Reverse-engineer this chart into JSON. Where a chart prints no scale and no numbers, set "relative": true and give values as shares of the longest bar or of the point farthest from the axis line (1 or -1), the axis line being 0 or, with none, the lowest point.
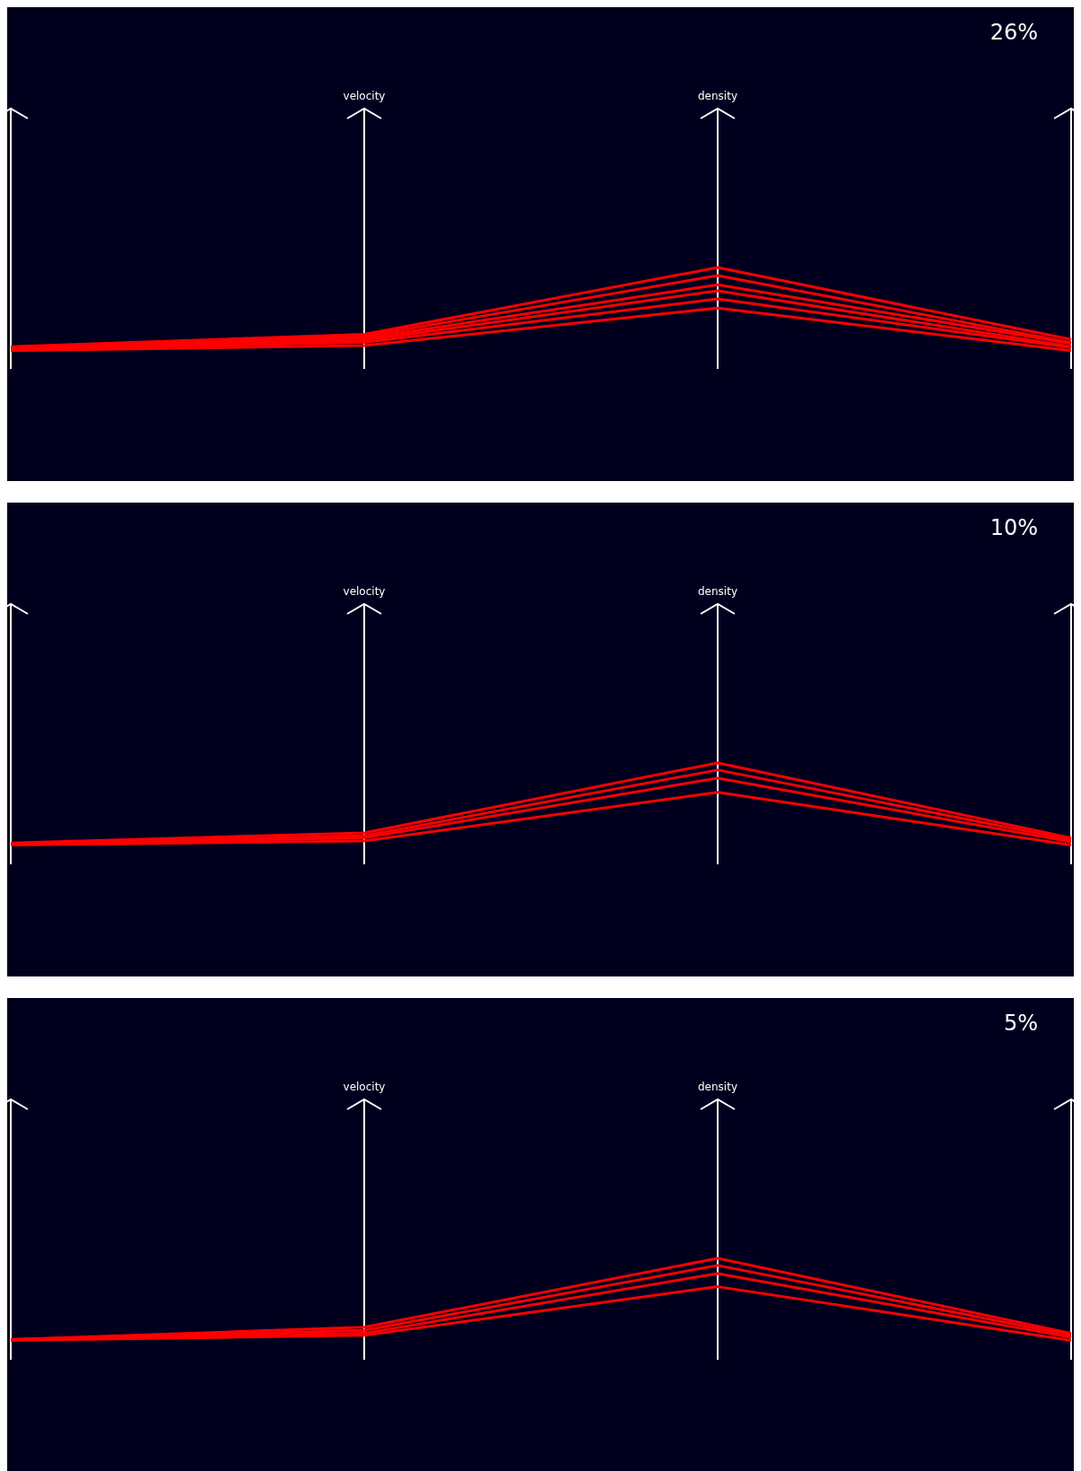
{
  "chart_data": [
    {
      "type": "line",
      "title": "26%",
      "relative": true,
      "grid": "x",
      "categories": [
        null,
        "velocity",
        "density",
        null
      ],
      "series": [
        {
          "color": "#ff0000",
          "values": [
            0.22,
            0.34,
            1,
            0.29
          ]
        },
        {
          "color": "#ff0000",
          "values": [
            0.21,
            0.32,
            0.92,
            0.26
          ]
        },
        {
          "color": "#ff0000",
          "values": [
            0.21,
            0.3,
            0.83,
            0.25
          ]
        },
        {
          "color": "#ff0000",
          "values": [
            0.2,
            0.28,
            0.77,
            0.22
          ]
        },
        {
          "color": "#ff0000",
          "values": [
            0.19,
            0.26,
            0.69,
            0.21
          ]
        },
        {
          "color": "#ff0000",
          "values": [
            0.18,
            0.23,
            0.6,
            0.18
          ]
        }
      ]
    },
    {
      "type": "line",
      "title": "10%",
      "relative": true,
      "grid": "x",
      "categories": [
        null,
        "velocity",
        "density",
        null
      ],
      "series": [
        {
          "color": "#ff0000",
          "values": [
            0.21,
            0.31,
            1,
            0.26
          ]
        },
        {
          "color": "#ff0000",
          "values": [
            0.2,
            0.28,
            0.93,
            0.24
          ]
        },
        {
          "color": "#ff0000",
          "values": [
            0.2,
            0.26,
            0.85,
            0.22
          ]
        },
        {
          "color": "#ff0000",
          "values": [
            0.19,
            0.23,
            0.71,
            0.19
          ]
        }
      ]
    },
    {
      "type": "line",
      "title": "5%",
      "relative": true,
      "grid": "x",
      "categories": [
        null,
        "velocity",
        "density",
        null
      ],
      "series": [
        {
          "color": "#ff0000",
          "values": [
            0.2,
            0.32,
            1,
            0.26
          ]
        },
        {
          "color": "#ff0000",
          "values": [
            0.2,
            0.29,
            0.93,
            0.24
          ]
        },
        {
          "color": "#ff0000",
          "values": [
            0.2,
            0.26,
            0.85,
            0.22
          ]
        },
        {
          "color": "#ff0000",
          "values": [
            0.19,
            0.24,
            0.72,
            0.19
          ]
        }
      ]
    }
  ]
}
